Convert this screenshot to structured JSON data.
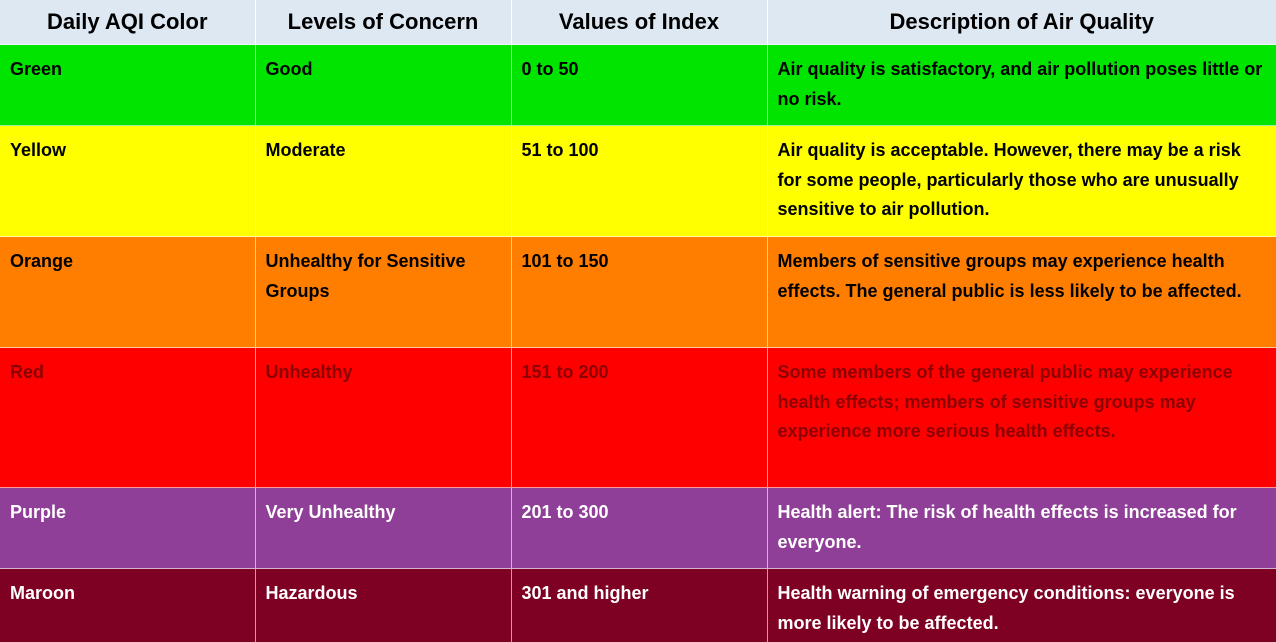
{
  "headers": [
    "Daily AQI Color",
    "Levels of Concern",
    "Values of Index",
    "Description of Air Quality"
  ],
  "rows": [
    {
      "color_name": "Green",
      "level": "Good",
      "values": "0 to 50",
      "description": "Air quality is satisfactory, and air pollution poses little or no risk.",
      "bg": "#00e400",
      "fg": "#000000"
    },
    {
      "color_name": "Yellow",
      "level": "Moderate",
      "values": "51 to 100",
      "description": "Air quality is acceptable. However, there may be a risk for some people, particularly those who are unusually sensitive to air pollution.",
      "bg": "#ffff00",
      "fg": "#000000"
    },
    {
      "color_name": "Orange",
      "level": "Unhealthy for Sensitive Groups",
      "values": "101 to 150",
      "description": "Members of sensitive groups may experience health effects. The general public is less likely to be affected.",
      "bg": "#ff7e00",
      "fg": "#000000"
    },
    {
      "color_name": "Red",
      "level": "Unhealthy",
      "values": "151 to 200",
      "description": "Some members of the general public may experience health effects; members of sensitive groups may experience more serious health effects.",
      "bg": "#ff0000",
      "fg": "#8b0000"
    },
    {
      "color_name": "Purple",
      "level": "Very Unhealthy",
      "values": "201 to 300",
      "description": "Health alert: The risk of health effects is increased for everyone.",
      "bg": "#8f3f97",
      "fg": "#ffffff"
    },
    {
      "color_name": "Maroon",
      "level": "Hazardous",
      "values": "301 and higher",
      "description": "Health warning of emergency conditions: everyone is more likely to be affected.",
      "bg": "#7e0023",
      "fg": "#ffffff"
    }
  ]
}
